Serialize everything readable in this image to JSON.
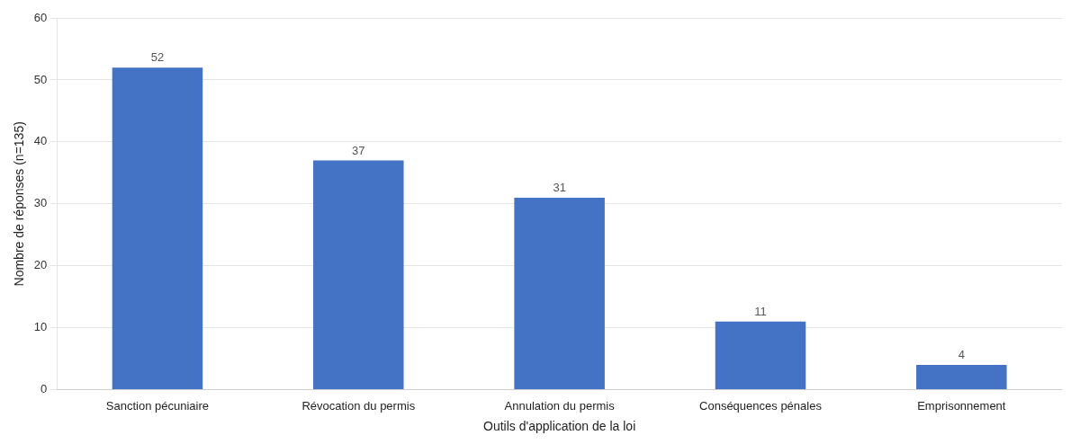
{
  "chart_data": {
    "type": "bar",
    "categories": [
      "Sanction pécuniaire",
      "Révocation du permis",
      "Annulation du permis",
      "Conséquences pénales",
      "Emprisonnement"
    ],
    "values": [
      52,
      37,
      31,
      11,
      4
    ],
    "color": "#4472C4",
    "xlabel": "Outils d'application de la loi",
    "ylabel": "Nombre de réponses (n=135)",
    "ylim": [
      0,
      60
    ],
    "yticks": [
      0,
      10,
      20,
      30,
      40,
      50,
      60
    ],
    "grid": true,
    "data_labels": true
  }
}
